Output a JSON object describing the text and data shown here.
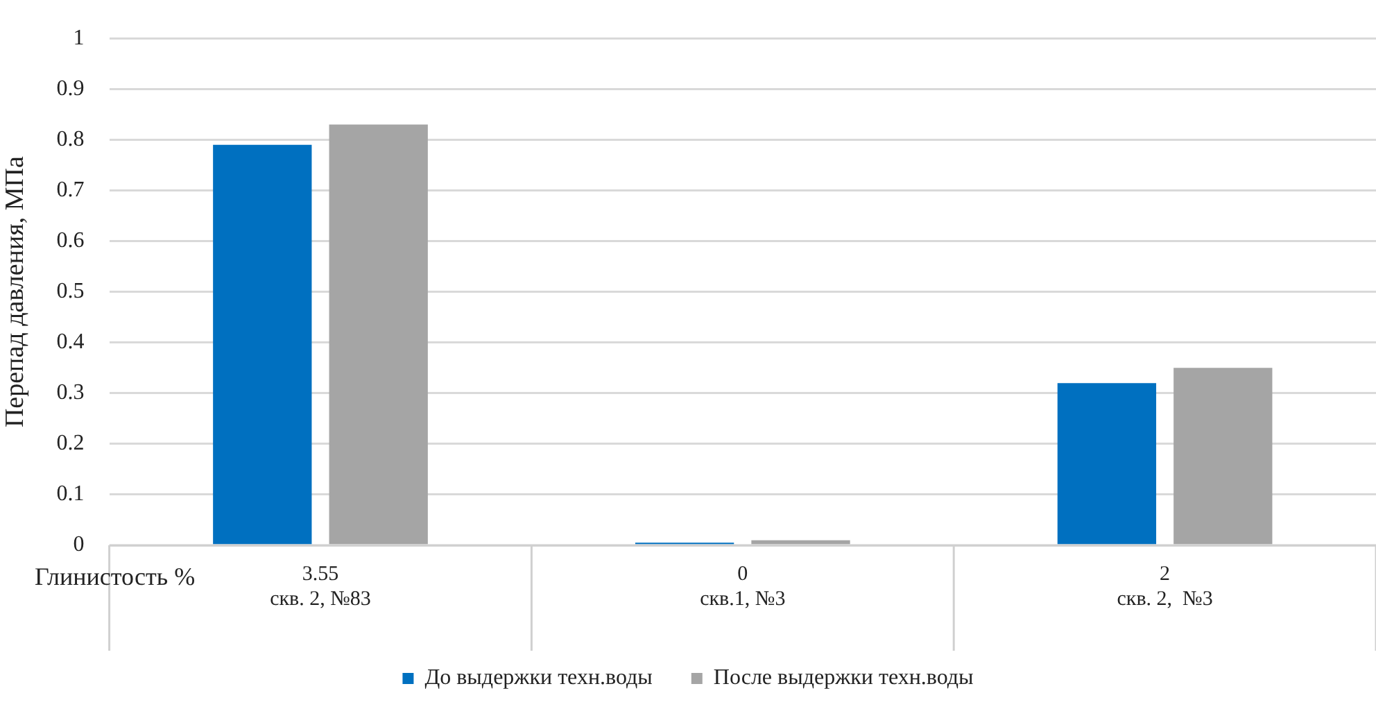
{
  "chart_data": {
    "type": "bar",
    "ylabel": "Перепад давления, МПа",
    "xlabel": "Глинистость %",
    "categories": [
      "3.55\nскв. 2, №83",
      "0\nскв.1, №3",
      "2\nскв. 2,  №3"
    ],
    "series": [
      {
        "name": "До выдержки техн.воды",
        "color": "#0070c0",
        "values": [
          0.79,
          0.005,
          0.32
        ]
      },
      {
        "name": "После выдержки техн.воды",
        "color": "#a5a5a5",
        "values": [
          0.83,
          0.01,
          0.35
        ]
      }
    ],
    "ylim": [
      0,
      1
    ],
    "yticks": [
      0,
      0.1,
      0.2,
      0.3,
      0.4,
      0.5,
      0.6,
      0.7,
      0.8,
      0.9,
      1
    ],
    "grid": "y",
    "legend": "bottom"
  }
}
